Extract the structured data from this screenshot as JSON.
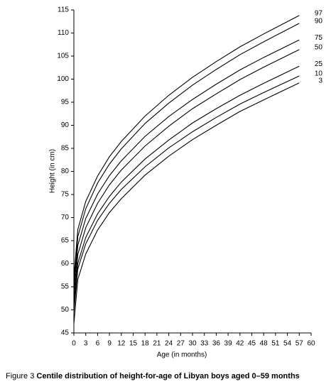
{
  "chart_data": {
    "type": "line",
    "x_label": "Age (in months)",
    "y_label": "Height (in cm)",
    "x": [
      0,
      1,
      3,
      6,
      9,
      12,
      18,
      24,
      30,
      36,
      42,
      48,
      57
    ],
    "series": [
      {
        "name": "97",
        "color": "#000000",
        "values": [
          57,
          67.4,
          73.5,
          79.0,
          83.2,
          86.5,
          92.0,
          96.5,
          100.4,
          103.8,
          107.0,
          109.8,
          113.8
        ]
      },
      {
        "name": "90",
        "color": "#000000",
        "values": [
          55.5,
          65.9,
          71.9,
          77.5,
          81.6,
          84.9,
          90.4,
          94.8,
          98.7,
          102.1,
          105.3,
          108.1,
          112.1
        ]
      },
      {
        "name": "75",
        "color": "#000000",
        "values": [
          54,
          64.0,
          69.8,
          75.1,
          79.1,
          82.3,
          87.6,
          91.9,
          95.6,
          98.9,
          102.0,
          104.7,
          108.5
        ]
      },
      {
        "name": "50",
        "color": "#000000",
        "values": [
          52,
          62.0,
          67.8,
          73.1,
          77.1,
          80.3,
          85.5,
          89.8,
          93.6,
          96.8,
          99.9,
          102.6,
          106.4
        ]
      },
      {
        "name": "25",
        "color": "#000000",
        "values": [
          50.5,
          60.1,
          65.7,
          70.8,
          74.6,
          77.7,
          82.7,
          86.8,
          90.5,
          93.6,
          96.5,
          99.1,
          102.8
        ]
      },
      {
        "name": "10",
        "color": "#000000",
        "values": [
          49.5,
          58.9,
          64.3,
          69.4,
          73.1,
          76.1,
          81.0,
          85.1,
          88.6,
          91.7,
          94.6,
          97.1,
          100.7
        ]
      },
      {
        "name": "3",
        "color": "#000000",
        "values": [
          47,
          56.6,
          62.1,
          67.3,
          71.1,
          74.1,
          79.2,
          83.3,
          86.9,
          90.0,
          93.0,
          95.5,
          99.2
        ]
      }
    ],
    "xlim": [
      0,
      60
    ],
    "xticks": [
      0,
      3,
      6,
      9,
      12,
      15,
      18,
      21,
      24,
      27,
      30,
      33,
      36,
      39,
      42,
      45,
      48,
      51,
      54,
      57,
      60
    ],
    "ylim": [
      45,
      115
    ],
    "yticks": [
      45,
      50,
      55,
      60,
      65,
      70,
      75,
      80,
      85,
      90,
      95,
      100,
      105,
      110,
      115
    ],
    "caption_label": "Figure 3",
    "caption_text": "Centile distribution of height-for-age of Libyan boys aged 0–59 months"
  }
}
